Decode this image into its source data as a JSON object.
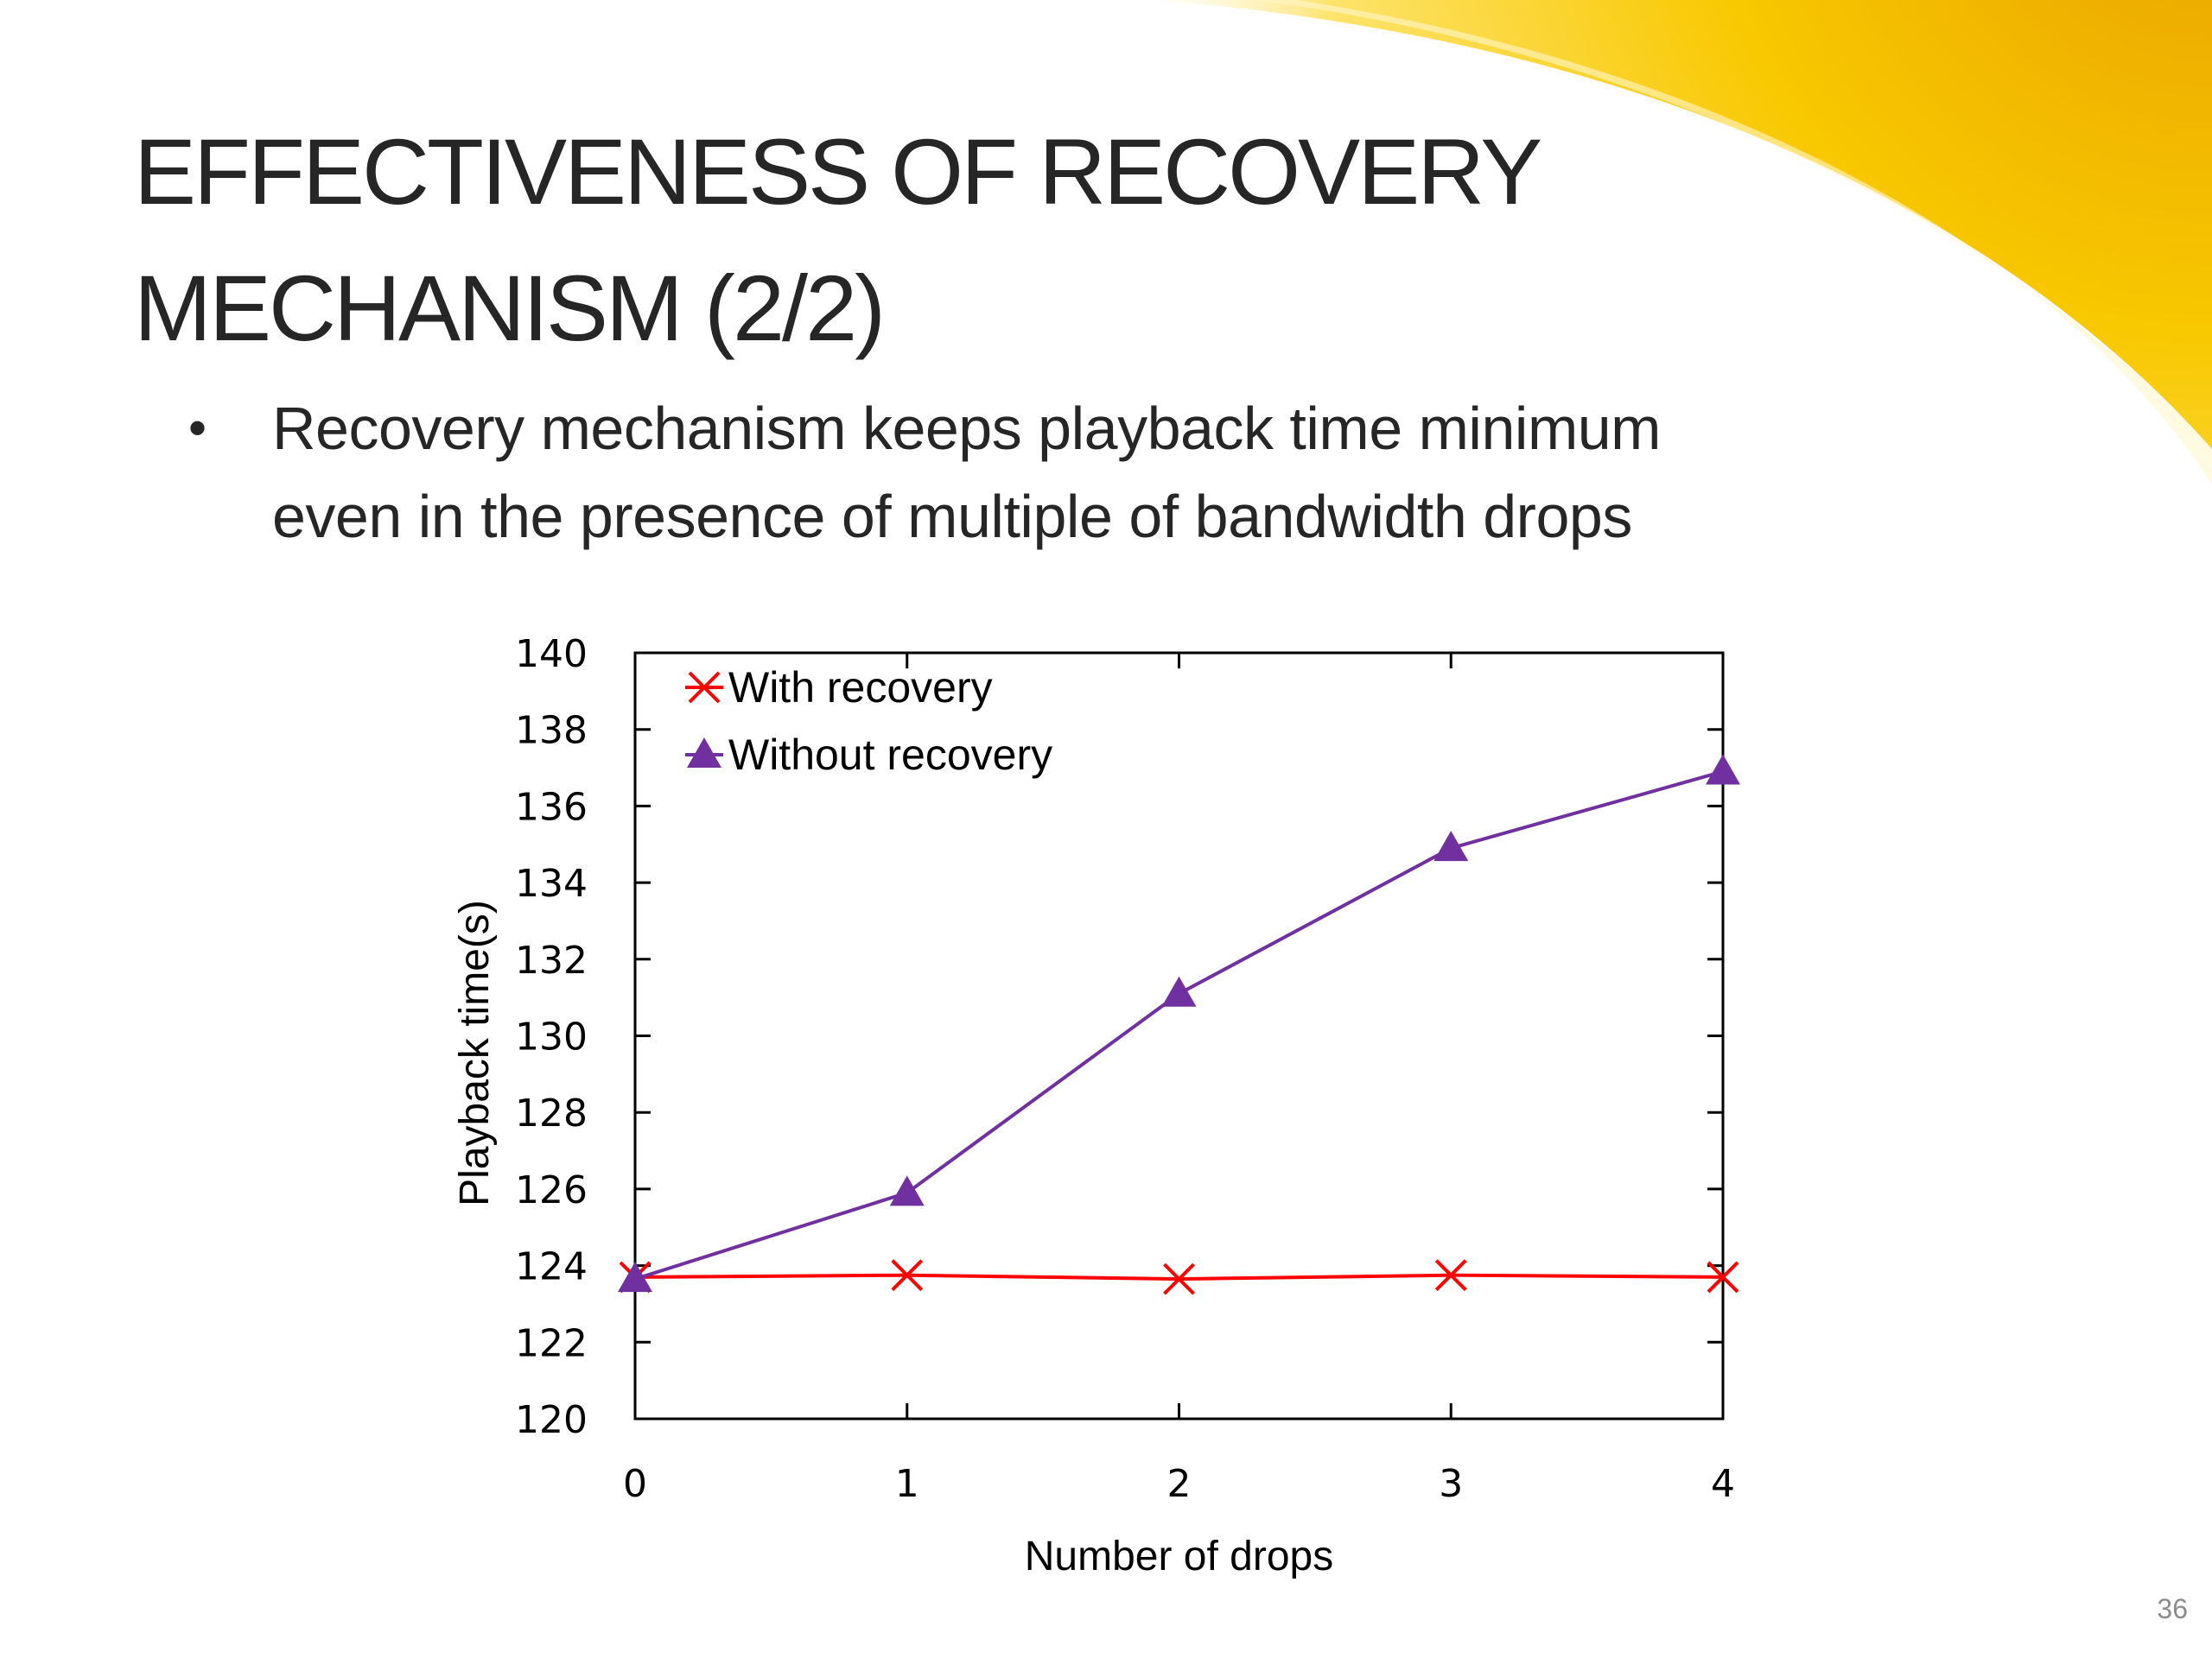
{
  "slide": {
    "title_lines": [
      "EFFECTIVENESS OF RECOVERY",
      "MECHANISM (2/2)"
    ],
    "bullet": {
      "symbol": "•",
      "lines": [
        "Recovery mechanism keeps playback time minimum",
        "even in the presence of multiple of bandwidth drops"
      ]
    },
    "page_number": "36",
    "theme_colors": {
      "accent_gold": "#F5C400",
      "accent_deep": "#E8A800",
      "text": "#262626"
    }
  },
  "chart_data": {
    "type": "line",
    "title": "",
    "xlabel": "Number of drops",
    "ylabel": "Playback time(s)",
    "x": [
      0,
      1,
      2,
      3,
      4
    ],
    "xticks": [
      "0",
      "1",
      "2",
      "3",
      "4"
    ],
    "xlim": [
      0,
      4
    ],
    "yticks": [
      "120",
      "122",
      "124",
      "126",
      "128",
      "130",
      "132",
      "134",
      "136",
      "138",
      "140"
    ],
    "ylim": [
      120,
      140
    ],
    "grid": false,
    "legend": "top-left",
    "series": [
      {
        "name": "With recovery",
        "marker": "x",
        "color": "#FF0000",
        "values": [
          123.7,
          123.75,
          123.65,
          123.75,
          123.7
        ]
      },
      {
        "name": "Without recovery",
        "marker": "triangle",
        "color": "#7030A0",
        "values": [
          123.65,
          125.9,
          131.1,
          134.9,
          136.9
        ]
      }
    ]
  }
}
